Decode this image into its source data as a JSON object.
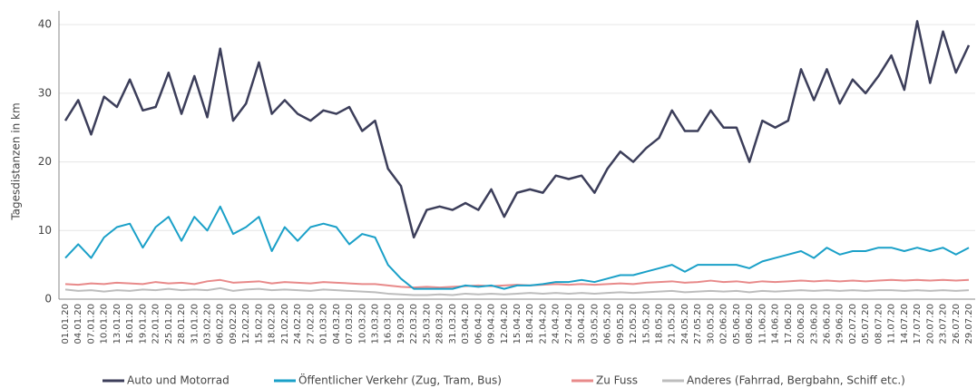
{
  "chart_data": {
    "type": "line",
    "y_label": "Tagesdistanzen in km",
    "categories": [
      "01.01.20",
      "04.01.20",
      "07.01.20",
      "10.01.20",
      "13.01.20",
      "16.01.20",
      "19.01.20",
      "22.01.20",
      "25.01.20",
      "28.01.20",
      "31.01.20",
      "03.02.20",
      "06.02.20",
      "09.02.20",
      "12.02.20",
      "15.02.20",
      "18.02.20",
      "21.02.20",
      "24.02.20",
      "27.02.20",
      "01.03.20",
      "04.03.20",
      "07.03.20",
      "10.03.20",
      "13.03.20",
      "16.03.20",
      "19.03.20",
      "22.03.20",
      "25.03.20",
      "28.03.20",
      "31.03.20",
      "03.04.20",
      "06.04.20",
      "09.04.20",
      "12.04.20",
      "15.04.20",
      "18.04.20",
      "21.04.20",
      "24.04.20",
      "27.04.20",
      "30.04.20",
      "03.05.20",
      "06.05.20",
      "09.05.20",
      "12.05.20",
      "15.05.20",
      "18.05.20",
      "21.05.20",
      "24.05.20",
      "27.05.20",
      "30.05.20",
      "02.06.20",
      "05.06.20",
      "08.06.20",
      "11.06.20",
      "14.06.20",
      "17.06.20",
      "20.06.20",
      "23.06.20",
      "26.06.20",
      "29.06.20",
      "02.07.20",
      "05.07.20",
      "08.07.20",
      "11.07.20",
      "14.07.20",
      "17.07.20",
      "20.07.20",
      "23.07.20",
      "26.07.20",
      "29.07.20"
    ],
    "series": [
      {
        "name": "Auto und Motorrad",
        "color": "#3c3e5a",
        "values": [
          26,
          29,
          24,
          29.5,
          28,
          32,
          27.5,
          28,
          33,
          27,
          32.5,
          26.5,
          36.5,
          26,
          28.5,
          34.5,
          27,
          29,
          27,
          26,
          27.5,
          27,
          28,
          24.5,
          26,
          19,
          16.5,
          9,
          13,
          13.5,
          13,
          14,
          13,
          16,
          12,
          15.5,
          16,
          15.5,
          18,
          17.5,
          18,
          15.5,
          19,
          21.5,
          20,
          22,
          23.5,
          27.5,
          24.5,
          24.5,
          27.5,
          25,
          25,
          20,
          26,
          25,
          26,
          33.5,
          29,
          33.5,
          28.5,
          32,
          30,
          32.5,
          35.5,
          30.5,
          40.5,
          31.5,
          39,
          33,
          37
        ]
      },
      {
        "name": "Öffentlicher Verkehr (Zug, Tram, Bus)",
        "color": "#1aa0c8",
        "values": [
          6,
          8,
          6,
          9,
          10.5,
          11,
          7.5,
          10.5,
          12,
          8.5,
          12,
          10,
          13.5,
          9.5,
          10.5,
          12,
          7,
          10.5,
          8.5,
          10.5,
          11,
          10.5,
          8,
          9.5,
          9,
          5,
          3,
          1.5,
          1.5,
          1.5,
          1.5,
          2,
          1.8,
          2,
          1.5,
          2,
          2,
          2.2,
          2.5,
          2.5,
          2.8,
          2.5,
          3,
          3.5,
          3.5,
          4,
          4.5,
          5,
          4,
          5,
          5,
          5,
          5,
          4.5,
          5.5,
          6,
          6.5,
          7,
          6,
          7.5,
          6.5,
          7,
          7,
          7.5,
          7.5,
          7,
          7.5,
          7,
          7.5,
          6.5,
          7.5
        ]
      },
      {
        "name": "Zu Fuss",
        "color": "#e88a8a",
        "values": [
          2.2,
          2.1,
          2.3,
          2.2,
          2.4,
          2.3,
          2.2,
          2.5,
          2.3,
          2.4,
          2.2,
          2.6,
          2.8,
          2.4,
          2.5,
          2.6,
          2.3,
          2.5,
          2.4,
          2.3,
          2.5,
          2.4,
          2.3,
          2.2,
          2.2,
          2,
          1.8,
          1.7,
          1.8,
          1.7,
          1.8,
          1.9,
          2,
          1.9,
          2,
          2.1,
          2,
          2.1,
          2.2,
          2.1,
          2.2,
          2.1,
          2.2,
          2.3,
          2.2,
          2.4,
          2.5,
          2.6,
          2.4,
          2.5,
          2.7,
          2.5,
          2.6,
          2.4,
          2.6,
          2.5,
          2.6,
          2.7,
          2.6,
          2.7,
          2.6,
          2.7,
          2.6,
          2.7,
          2.8,
          2.7,
          2.8,
          2.7,
          2.8,
          2.7,
          2.8
        ]
      },
      {
        "name": "Anderes (Fahrrad, Bergbahn, Schiff etc.)",
        "color": "#bdbdbd",
        "values": [
          1.4,
          1.2,
          1.3,
          1.1,
          1.3,
          1.2,
          1.4,
          1.3,
          1.5,
          1.3,
          1.4,
          1.3,
          1.6,
          1.2,
          1.4,
          1.5,
          1.3,
          1.4,
          1.3,
          1.2,
          1.4,
          1.3,
          1.2,
          1.1,
          1,
          0.8,
          0.7,
          0.6,
          0.6,
          0.7,
          0.6,
          0.8,
          0.7,
          0.8,
          0.7,
          0.8,
          0.9,
          0.8,
          0.9,
          0.8,
          0.9,
          0.8,
          0.9,
          1,
          0.9,
          1,
          1.1,
          1.2,
          1,
          1.1,
          1.2,
          1.1,
          1.2,
          1,
          1.2,
          1.1,
          1.2,
          1.3,
          1.2,
          1.3,
          1.2,
          1.3,
          1.2,
          1.3,
          1.3,
          1.2,
          1.3,
          1.2,
          1.3,
          1.2,
          1.3
        ]
      }
    ],
    "ylim": [
      0,
      42
    ],
    "yticks": [
      0,
      10,
      20,
      30,
      40
    ],
    "grid": true,
    "legend": "bottom"
  }
}
